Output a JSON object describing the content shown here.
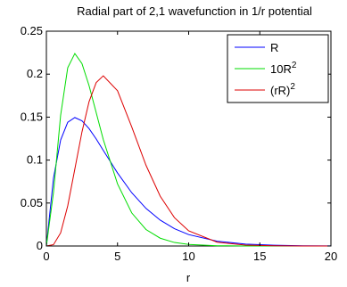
{
  "chart_data": {
    "type": "line",
    "title": "Radial part of 2,1 wavefunction in 1/r potential",
    "xlabel": "r",
    "ylabel": "",
    "xlim": [
      0,
      20
    ],
    "ylim": [
      0,
      0.25
    ],
    "x_ticks": [
      "0",
      "5",
      "10",
      "15",
      "20"
    ],
    "y_ticks": [
      "0",
      "0.05",
      "0.1",
      "0.15",
      "0.2",
      "0.25"
    ],
    "grid": false,
    "legend_position": "top-right",
    "series": [
      {
        "name": "R",
        "name_base": "R",
        "name_sup": "",
        "color": "#0000ff",
        "x": [
          0,
          0.5,
          1,
          1.5,
          2,
          2.5,
          3,
          3.5,
          4,
          5,
          6,
          7,
          8,
          9,
          10,
          12,
          14,
          16,
          18,
          20
        ],
        "y": [
          0,
          0.0791,
          0.1233,
          0.144,
          0.1495,
          0.1457,
          0.1366,
          0.1246,
          0.1113,
          0.085,
          0.062,
          0.0438,
          0.0301,
          0.0202,
          0.0133,
          0.0056,
          0.0022,
          0.0009,
          0.0003,
          0.0001
        ]
      },
      {
        "name": "10R^2",
        "name_base": "10R",
        "name_sup": "2",
        "color": "#00dd00",
        "x": [
          0,
          0.5,
          1,
          1.5,
          2,
          2.5,
          3,
          3.5,
          4,
          5,
          6,
          7,
          8,
          9,
          10,
          12,
          14,
          16,
          18,
          20
        ],
        "y": [
          0,
          0.0626,
          0.152,
          0.2074,
          0.224,
          0.2123,
          0.1866,
          0.1553,
          0.1238,
          0.0723,
          0.0385,
          0.0192,
          0.0091,
          0.0041,
          0.0018,
          0.0003,
          5e-05,
          0,
          0,
          0
        ]
      },
      {
        "name": "(rR)^2",
        "name_base": "(rR)",
        "name_sup": "2",
        "color": "#dd0000",
        "x": [
          0,
          0.5,
          1,
          1.5,
          2,
          2.5,
          3,
          3.5,
          4,
          5,
          6,
          7,
          8,
          9,
          10,
          12,
          14,
          16,
          18,
          20
        ],
        "y": [
          0,
          0.0016,
          0.0152,
          0.0467,
          0.0896,
          0.1327,
          0.168,
          0.1902,
          0.1981,
          0.1807,
          0.1386,
          0.094,
          0.058,
          0.033,
          0.0177,
          0.0044,
          0.001,
          0.0002,
          4e-05,
          0
        ]
      }
    ]
  }
}
